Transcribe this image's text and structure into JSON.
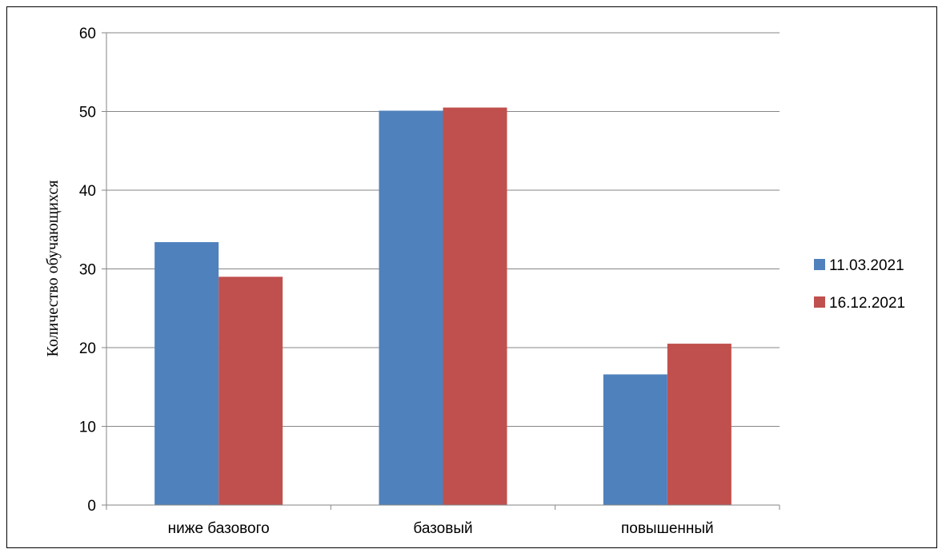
{
  "chart_data": {
    "type": "bar",
    "title": "",
    "xlabel": "",
    "ylabel": "Количество обучающихся",
    "categories": [
      "ниже базового",
      "базовый",
      "повышенный"
    ],
    "series": [
      {
        "name": "11.03.2021",
        "color": "#4F81BD",
        "values": [
          33.4,
          50.1,
          16.6
        ]
      },
      {
        "name": "16.12.2021",
        "color": "#C0504D",
        "values": [
          29.0,
          50.5,
          20.5
        ]
      }
    ],
    "ylim": [
      0,
      60
    ],
    "yticks": [
      0,
      10,
      20,
      30,
      40,
      50,
      60
    ],
    "grid": true,
    "legend": "right"
  }
}
